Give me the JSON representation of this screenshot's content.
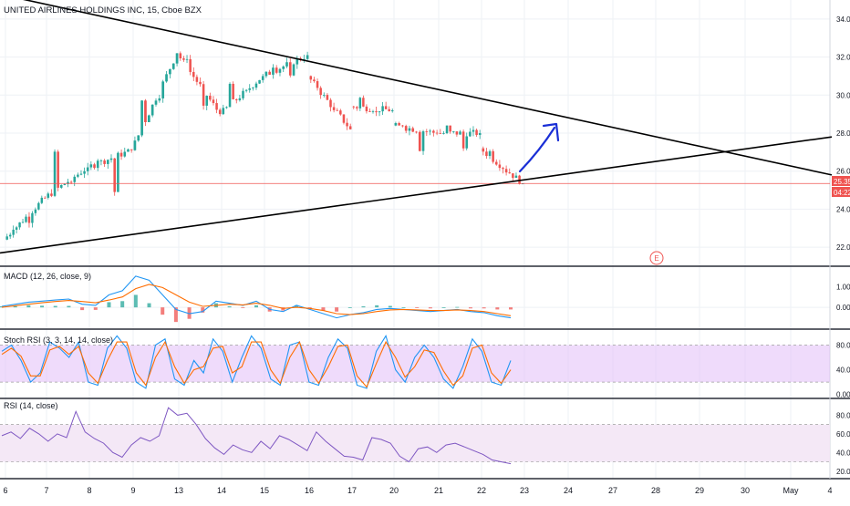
{
  "title": "UNITED AIRLINES HOLDINGS INC, 15, Cboe BZX",
  "colors": {
    "up": "#26a69a",
    "down": "#ef5350",
    "grid": "#eef1f5",
    "separator": "#2a2e39",
    "axis_text": "#131722",
    "trendline": "#000000",
    "arrow": "#1a2fd6",
    "price_line": "#ef5350",
    "macd_line": "#2196f3",
    "signal_line": "#ff6d00",
    "stoch_k": "#2196f3",
    "stoch_d": "#ff6d00",
    "stoch_band": "#e1bef7",
    "rsi_line": "#7e57c2",
    "rsi_band": "#f3e5f5"
  },
  "price_tag": {
    "value": "25.35",
    "countdown": "04:22"
  },
  "earnings_marker": {
    "symbol": "E"
  },
  "chart_data": [
    {
      "type": "candlestick",
      "pane": "price",
      "y_ticks": [
        "34.00",
        "32.00",
        "30.00",
        "28.00",
        "26.00",
        "24.00",
        "22.00"
      ],
      "ylim": [
        21,
        35
      ],
      "last_price": 25.35,
      "x_ticks": [
        "6",
        "7",
        "8",
        "9",
        "13",
        "14",
        "15",
        "16",
        "17",
        "20",
        "21",
        "22",
        "23",
        "24",
        "27",
        "28",
        "29",
        "30",
        "May",
        "4"
      ],
      "candles_approx": [
        {
          "session": "6",
          "o": 22.4,
          "h": 24.8,
          "l": 22.0,
          "c": 24.6
        },
        {
          "session": "7",
          "o": 24.6,
          "h": 28.6,
          "l": 24.2,
          "c": 26.2
        },
        {
          "session": "8",
          "o": 26.2,
          "h": 27.4,
          "l": 23.9,
          "c": 27.1
        },
        {
          "session": "9",
          "o": 27.1,
          "h": 34.0,
          "l": 26.8,
          "c": 32.2
        },
        {
          "session": "13",
          "o": 32.2,
          "h": 32.9,
          "l": 27.8,
          "c": 29.0
        },
        {
          "session": "14",
          "o": 29.0,
          "h": 32.4,
          "l": 28.9,
          "c": 31.0
        },
        {
          "session": "15",
          "o": 31.0,
          "h": 32.5,
          "l": 30.0,
          "c": 32.1
        },
        {
          "session": "16",
          "o": 31.0,
          "h": 31.1,
          "l": 28.0,
          "c": 28.2
        },
        {
          "session": "17",
          "o": 29.4,
          "h": 30.0,
          "l": 28.9,
          "c": 29.2
        },
        {
          "session": "20",
          "o": 28.4,
          "h": 28.6,
          "l": 26.8,
          "c": 28.0
        },
        {
          "session": "21",
          "o": 28.0,
          "h": 28.4,
          "l": 27.0,
          "c": 28.0
        },
        {
          "session": "22",
          "o": 27.2,
          "h": 27.5,
          "l": 25.3,
          "c": 25.35
        }
      ],
      "trendlines": [
        {
          "name": "descending resistance",
          "from": {
            "session": "6",
            "price": 35.3
          },
          "to": {
            "session": "4",
            "price": 25.8
          }
        },
        {
          "name": "ascending support",
          "from": {
            "session": "6",
            "price": 21.7
          },
          "to": {
            "session": "4",
            "price": 27.8
          }
        }
      ],
      "annotation": "upward arrow drawn from support line near 26 toward 28.5"
    },
    {
      "type": "line",
      "pane": "MACD",
      "label": "MACD (12, 26, close, 9)",
      "y_ticks": [
        "1.00",
        "0.00"
      ],
      "ylim": [
        -1.0,
        1.8
      ],
      "series": [
        {
          "key": "macd",
          "values": [
            0.05,
            0.15,
            0.25,
            0.3,
            0.35,
            0.4,
            0.15,
            0.1,
            0.6,
            0.8,
            1.5,
            1.3,
            0.6,
            -0.1,
            -0.3,
            -0.2,
            0.3,
            0.2,
            0.1,
            0.3,
            -0.1,
            -0.2,
            0.1,
            -0.1,
            -0.3,
            -0.5,
            -0.35,
            -0.25,
            -0.1,
            -0.05,
            -0.1,
            -0.15,
            -0.2,
            -0.15,
            -0.1,
            -0.2,
            -0.25,
            -0.4,
            -0.5
          ]
        },
        {
          "key": "signal",
          "values": [
            0.0,
            0.08,
            0.15,
            0.22,
            0.28,
            0.33,
            0.28,
            0.22,
            0.35,
            0.5,
            0.9,
            1.1,
            0.95,
            0.6,
            0.25,
            0.05,
            0.1,
            0.15,
            0.12,
            0.2,
            0.1,
            -0.05,
            0.0,
            -0.05,
            -0.15,
            -0.3,
            -0.35,
            -0.3,
            -0.2,
            -0.12,
            -0.1,
            -0.12,
            -0.15,
            -0.15,
            -0.12,
            -0.15,
            -0.2,
            -0.3,
            -0.4
          ]
        }
      ]
    },
    {
      "type": "line",
      "pane": "Stoch RSI",
      "label": "Stoch RSI (3, 3, 14, 14, close)",
      "y_ticks": [
        "80.00",
        "40.00",
        "0.00"
      ],
      "ylim": [
        -5,
        100
      ],
      "band": [
        20,
        80
      ],
      "series": [
        {
          "key": "k",
          "values": [
            70,
            80,
            55,
            20,
            35,
            85,
            75,
            60,
            85,
            20,
            15,
            75,
            95,
            75,
            20,
            10,
            80,
            90,
            25,
            15,
            55,
            35,
            90,
            70,
            20,
            60,
            95,
            75,
            25,
            15,
            80,
            85,
            20,
            15,
            60,
            90,
            75,
            15,
            10,
            70,
            95,
            40,
            20,
            60,
            80,
            60,
            25,
            10,
            45,
            90,
            70,
            20,
            15,
            55
          ]
        },
        {
          "key": "d",
          "values": [
            65,
            75,
            62,
            30,
            30,
            72,
            78,
            65,
            78,
            35,
            18,
            55,
            85,
            85,
            35,
            15,
            60,
            85,
            45,
            18,
            40,
            45,
            75,
            78,
            35,
            45,
            85,
            85,
            40,
            18,
            60,
            85,
            40,
            18,
            45,
            78,
            80,
            30,
            12,
            50,
            85,
            60,
            28,
            45,
            72,
            68,
            38,
            15,
            30,
            75,
            80,
            35,
            18,
            40
          ]
        }
      ]
    },
    {
      "type": "line",
      "pane": "RSI",
      "label": "RSI (14, close)",
      "y_ticks": [
        "80.00",
        "60.00",
        "40.00",
        "20.00"
      ],
      "ylim": [
        13,
        95
      ],
      "band": [
        30,
        70
      ],
      "series": [
        {
          "key": "rsi",
          "values": [
            58,
            62,
            55,
            66,
            60,
            52,
            60,
            56,
            84,
            62,
            55,
            50,
            40,
            35,
            48,
            56,
            52,
            58,
            88,
            80,
            82,
            70,
            55,
            45,
            38,
            48,
            43,
            40,
            52,
            44,
            58,
            54,
            48,
            42,
            62,
            52,
            44,
            36,
            35,
            32,
            56,
            54,
            50,
            36,
            30,
            44,
            46,
            40,
            48,
            50,
            46,
            42,
            38,
            32,
            30,
            28
          ]
        }
      ]
    }
  ]
}
